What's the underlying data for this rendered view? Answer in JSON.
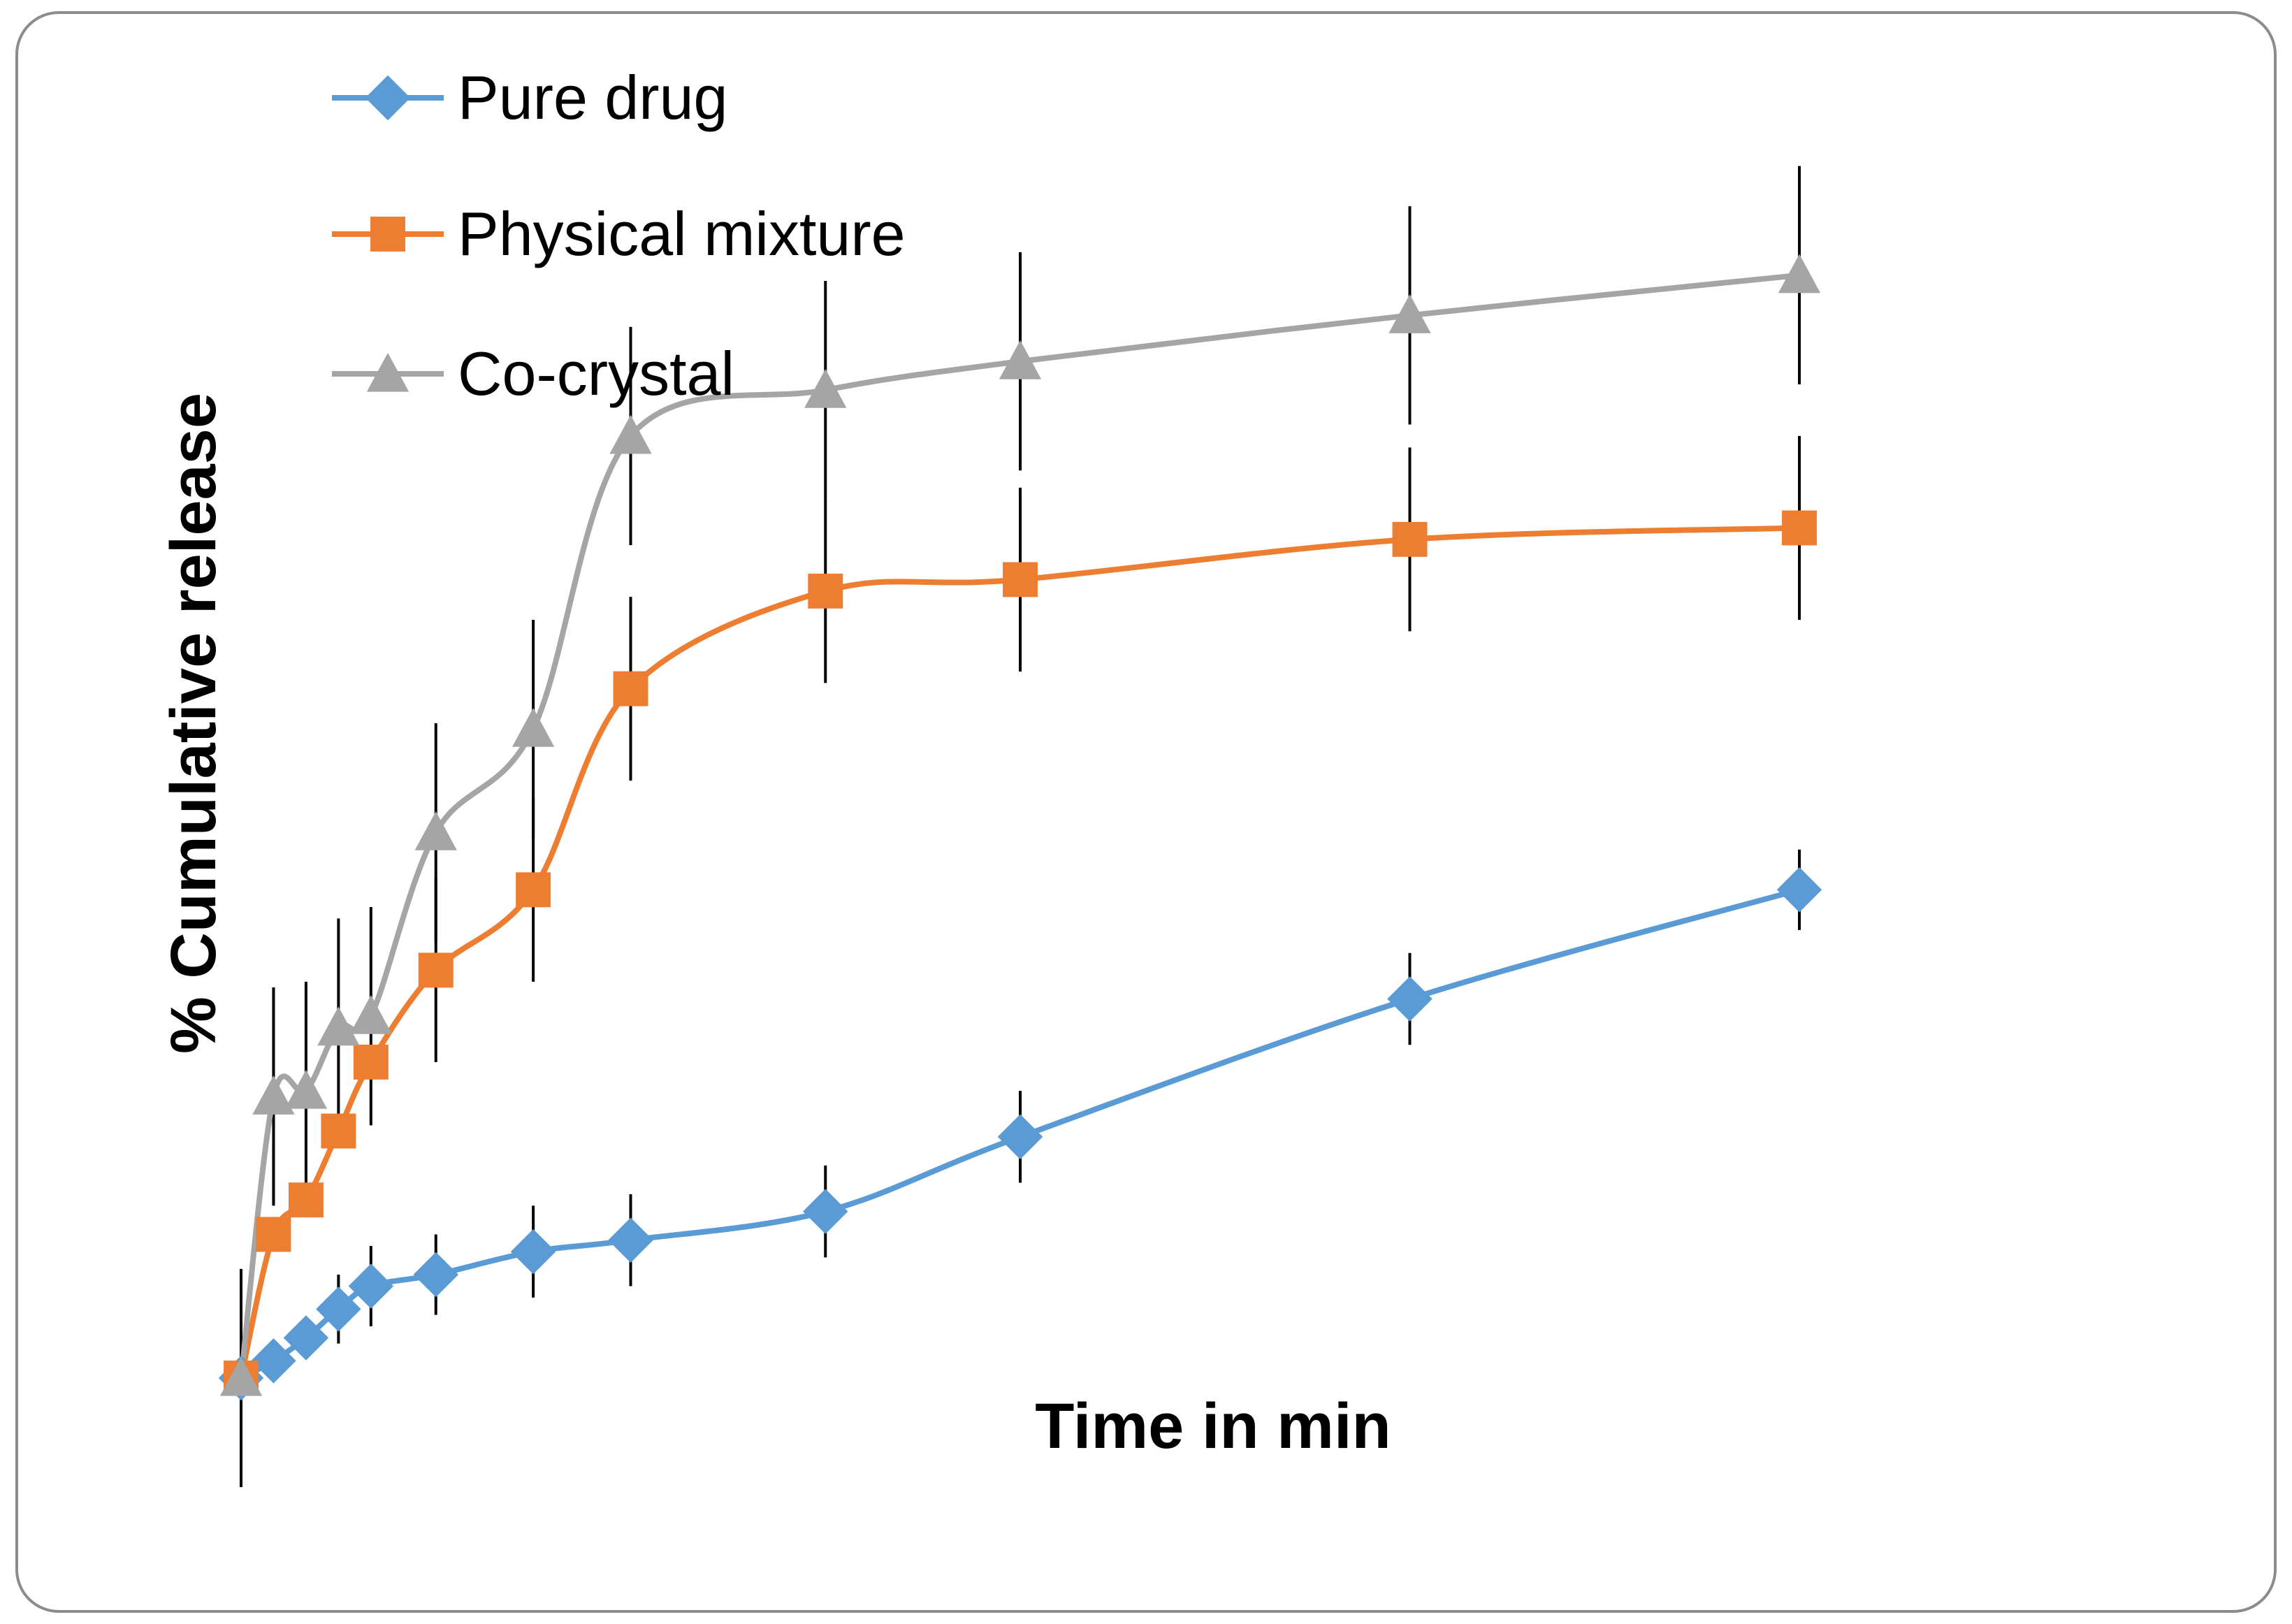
{
  "chart_data": {
    "type": "line",
    "title": "",
    "xlabel": "Time in min",
    "ylabel": "% Cumulative release",
    "x": [
      0,
      1,
      2,
      3,
      4,
      6,
      9,
      12,
      18,
      24,
      36,
      48
    ],
    "x_axis_visible": false,
    "y_axis_visible": false,
    "xlim": [
      0,
      48
    ],
    "ylim": [
      0,
      100
    ],
    "grid": false,
    "legend_position": "top-left",
    "series": [
      {
        "name": "Pure drug",
        "color": "#5B9BD5",
        "marker": "diamond",
        "values": [
          0,
          1.5,
          3.5,
          6.0,
          8.0,
          9.0,
          11.0,
          12.0,
          14.5,
          21.0,
          33.0,
          42.5
        ],
        "errors": [
          0,
          0.5,
          1.5,
          3.0,
          3.5,
          3.5,
          4.0,
          4.0,
          4.0,
          4.0,
          4.0,
          3.5
        ]
      },
      {
        "name": "Physical mixture",
        "color": "#ED7D31",
        "marker": "square",
        "values": [
          0,
          12.5,
          15.5,
          21.5,
          27.5,
          35.5,
          42.5,
          60.0,
          68.5,
          69.5,
          73.0,
          74.0
        ],
        "errors": [
          0,
          0,
          0,
          0,
          0,
          8.0,
          8.0,
          8.0,
          8.0,
          8.0,
          8.0,
          8.0
        ]
      },
      {
        "name": "Co-crystal",
        "color": "#A5A5A5",
        "marker": "triangle",
        "values": [
          0,
          24.5,
          25.0,
          30.5,
          31.5,
          47.5,
          56.5,
          82.0,
          86.0,
          88.5,
          92.5,
          96.0
        ],
        "errors": [
          9.5,
          9.5,
          9.5,
          9.5,
          9.5,
          9.5,
          9.5,
          9.5,
          9.5,
          9.5,
          9.5,
          9.5
        ]
      }
    ]
  }
}
